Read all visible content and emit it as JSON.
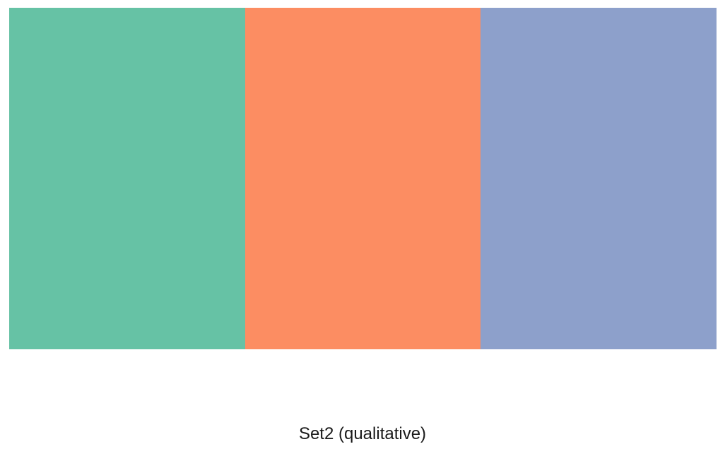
{
  "palette": {
    "caption": "Set2 (qualitative)",
    "swatches": [
      {
        "color": "#66c2a5"
      },
      {
        "color": "#fc8d62"
      },
      {
        "color": "#8da0cb"
      }
    ]
  }
}
